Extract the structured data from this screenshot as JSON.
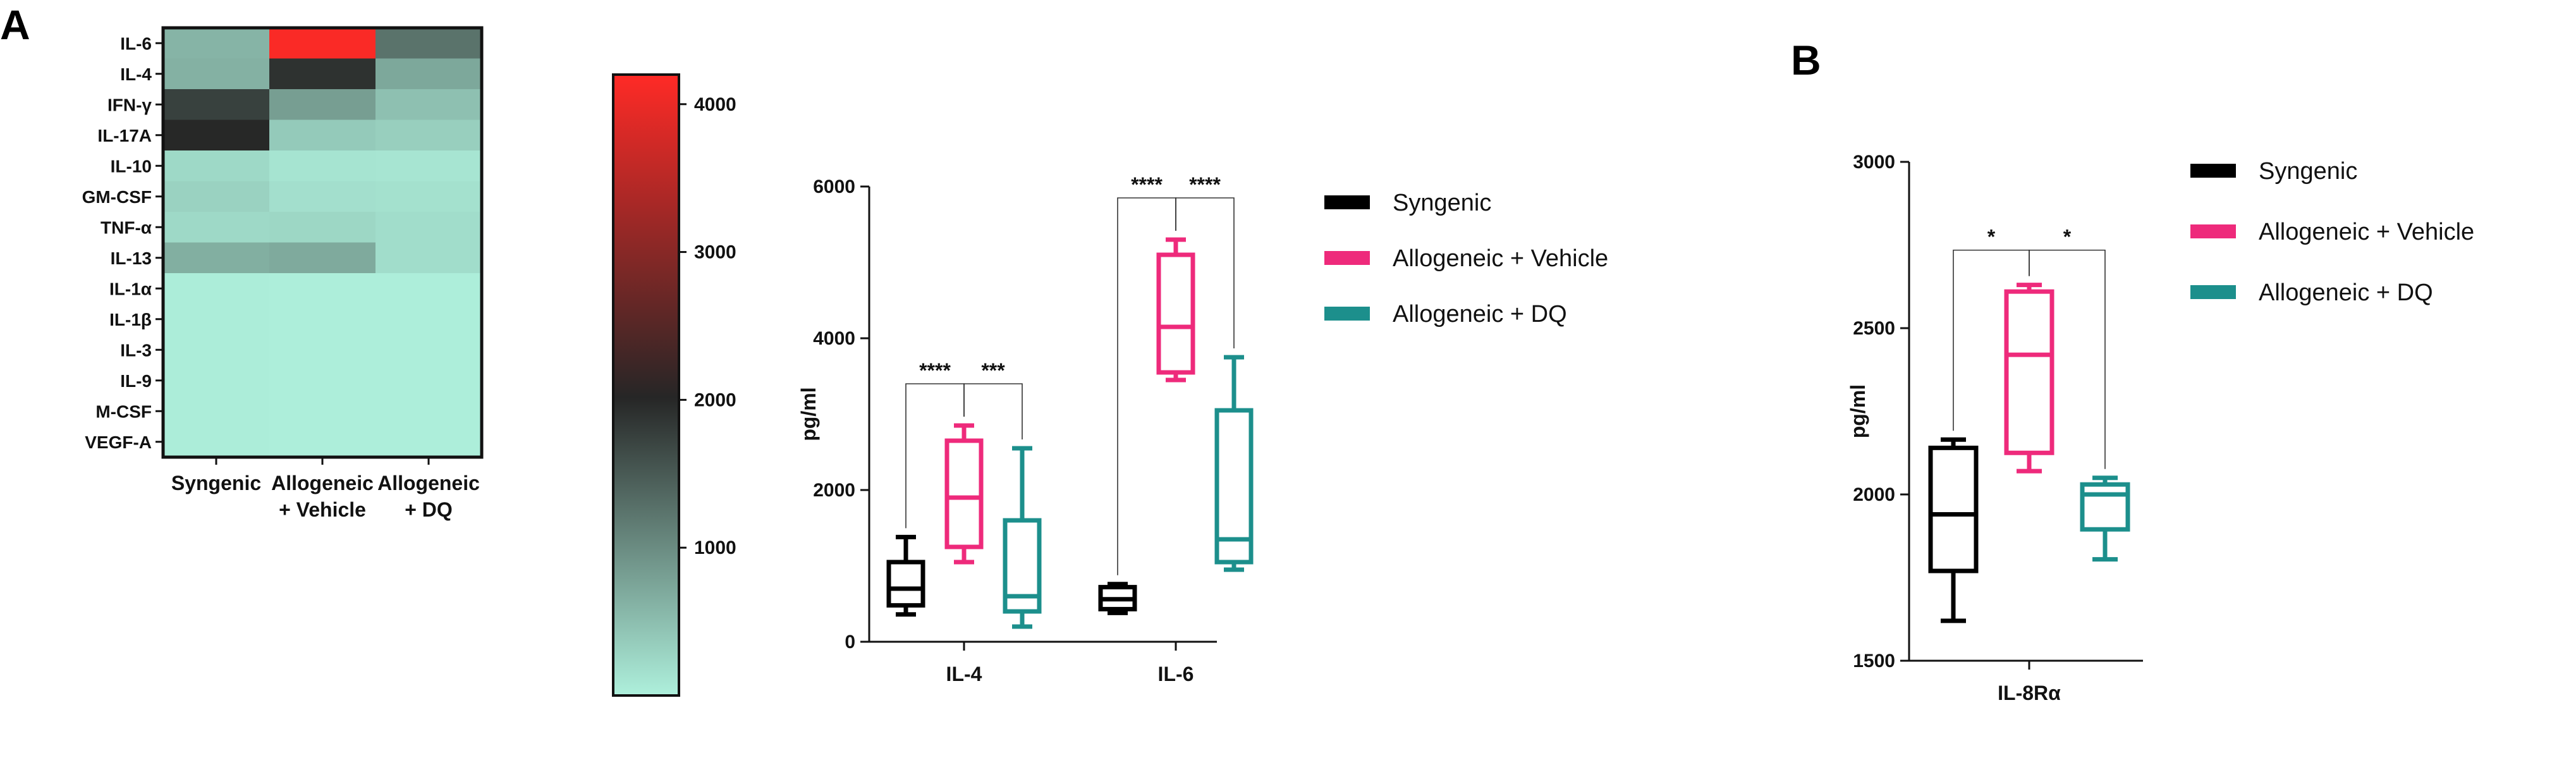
{
  "panels": {
    "a": "A",
    "b": "B"
  },
  "colors": {
    "syngenic": "#000000",
    "vehicle": "#ee2a7b",
    "dq": "#1c8f8c",
    "heat_low": "#aef0dc",
    "heat_mid": "#262626",
    "heat_high": "#ff2a26"
  },
  "chart_data": [
    {
      "type": "heatmap",
      "rows": [
        "IL-6",
        "IL-4",
        "IFN-γ",
        "IL-17A",
        "IL-10",
        "GM-CSF",
        "TNF-α",
        "IL-13",
        "IL-1α",
        "IL-1β",
        "IL-3",
        "IL-9",
        "M-CSF",
        "VEGF-A"
      ],
      "columns": [
        [
          "Syngenic"
        ],
        [
          "Allogeneic",
          "+ Vehicle"
        ],
        [
          "Allogeneic",
          "+ DQ"
        ]
      ],
      "values": [
        [
          600,
          4150,
          1250
        ],
        [
          630,
          1900,
          720
        ],
        [
          1750,
          820,
          480
        ],
        [
          2000,
          380,
          330
        ],
        [
          230,
          120,
          110
        ],
        [
          300,
          170,
          150
        ],
        [
          230,
          250,
          190
        ],
        [
          650,
          700,
          190
        ],
        [
          30,
          20,
          20
        ],
        [
          30,
          20,
          20
        ],
        [
          30,
          20,
          20
        ],
        [
          30,
          20,
          20
        ],
        [
          30,
          20,
          20
        ],
        [
          30,
          20,
          20
        ]
      ],
      "colorbar": {
        "range": [
          0,
          4200
        ],
        "ticks": [
          1000,
          2000,
          3000,
          4000
        ]
      }
    },
    {
      "type": "box",
      "categories": [
        "IL-4",
        "IL-6"
      ],
      "ylabel": "pg/ml",
      "ylim": [
        0,
        6000
      ],
      "yticks": [
        0,
        2000,
        4000,
        6000
      ],
      "series": [
        {
          "name": "Syngenic",
          "boxes": [
            {
              "min": 360,
              "q1": 480,
              "median": 700,
              "q3": 1050,
              "max": 1380
            },
            {
              "min": 380,
              "q1": 430,
              "median": 560,
              "q3": 720,
              "max": 760
            }
          ]
        },
        {
          "name": "Allogeneic + Vehicle",
          "boxes": [
            {
              "min": 1050,
              "q1": 1250,
              "median": 1900,
              "q3": 2650,
              "max": 2850
            },
            {
              "min": 3450,
              "q1": 3550,
              "median": 4150,
              "q3": 5100,
              "max": 5300
            }
          ]
        },
        {
          "name": "Allogeneic + DQ",
          "boxes": [
            {
              "min": 200,
              "q1": 400,
              "median": 600,
              "q3": 1600,
              "max": 2550
            },
            {
              "min": 950,
              "q1": 1050,
              "median": 1350,
              "q3": 3050,
              "max": 3750
            }
          ]
        }
      ],
      "significance": [
        {
          "category": 0,
          "from": 0,
          "to": 1,
          "label": "****"
        },
        {
          "category": 0,
          "from": 1,
          "to": 2,
          "label": "***"
        },
        {
          "category": 1,
          "from": 0,
          "to": 1,
          "label": "****"
        },
        {
          "category": 1,
          "from": 1,
          "to": 2,
          "label": "****"
        }
      ],
      "legend": {
        "position": "right"
      }
    },
    {
      "type": "box",
      "categories": [
        "IL-8Rα"
      ],
      "ylabel": "pg/ml",
      "ylim": [
        1500,
        3000
      ],
      "yticks": [
        1500,
        2000,
        2500,
        3000
      ],
      "series": [
        {
          "name": "Syngenic",
          "boxes": [
            {
              "min": 1620,
              "q1": 1770,
              "median": 1940,
              "q3": 2140,
              "max": 2165
            }
          ]
        },
        {
          "name": "Allogeneic + Vehicle",
          "boxes": [
            {
              "min": 2070,
              "q1": 2125,
              "median": 2420,
              "q3": 2610,
              "max": 2630
            }
          ]
        },
        {
          "name": "Allogeneic + DQ",
          "boxes": [
            {
              "min": 1805,
              "q1": 1895,
              "median": 2000,
              "q3": 2030,
              "max": 2050
            }
          ]
        }
      ],
      "significance": [
        {
          "category": 0,
          "from": 0,
          "to": 1,
          "label": "*"
        },
        {
          "category": 0,
          "from": 1,
          "to": 2,
          "label": "*"
        }
      ],
      "legend": {
        "position": "right"
      }
    }
  ]
}
